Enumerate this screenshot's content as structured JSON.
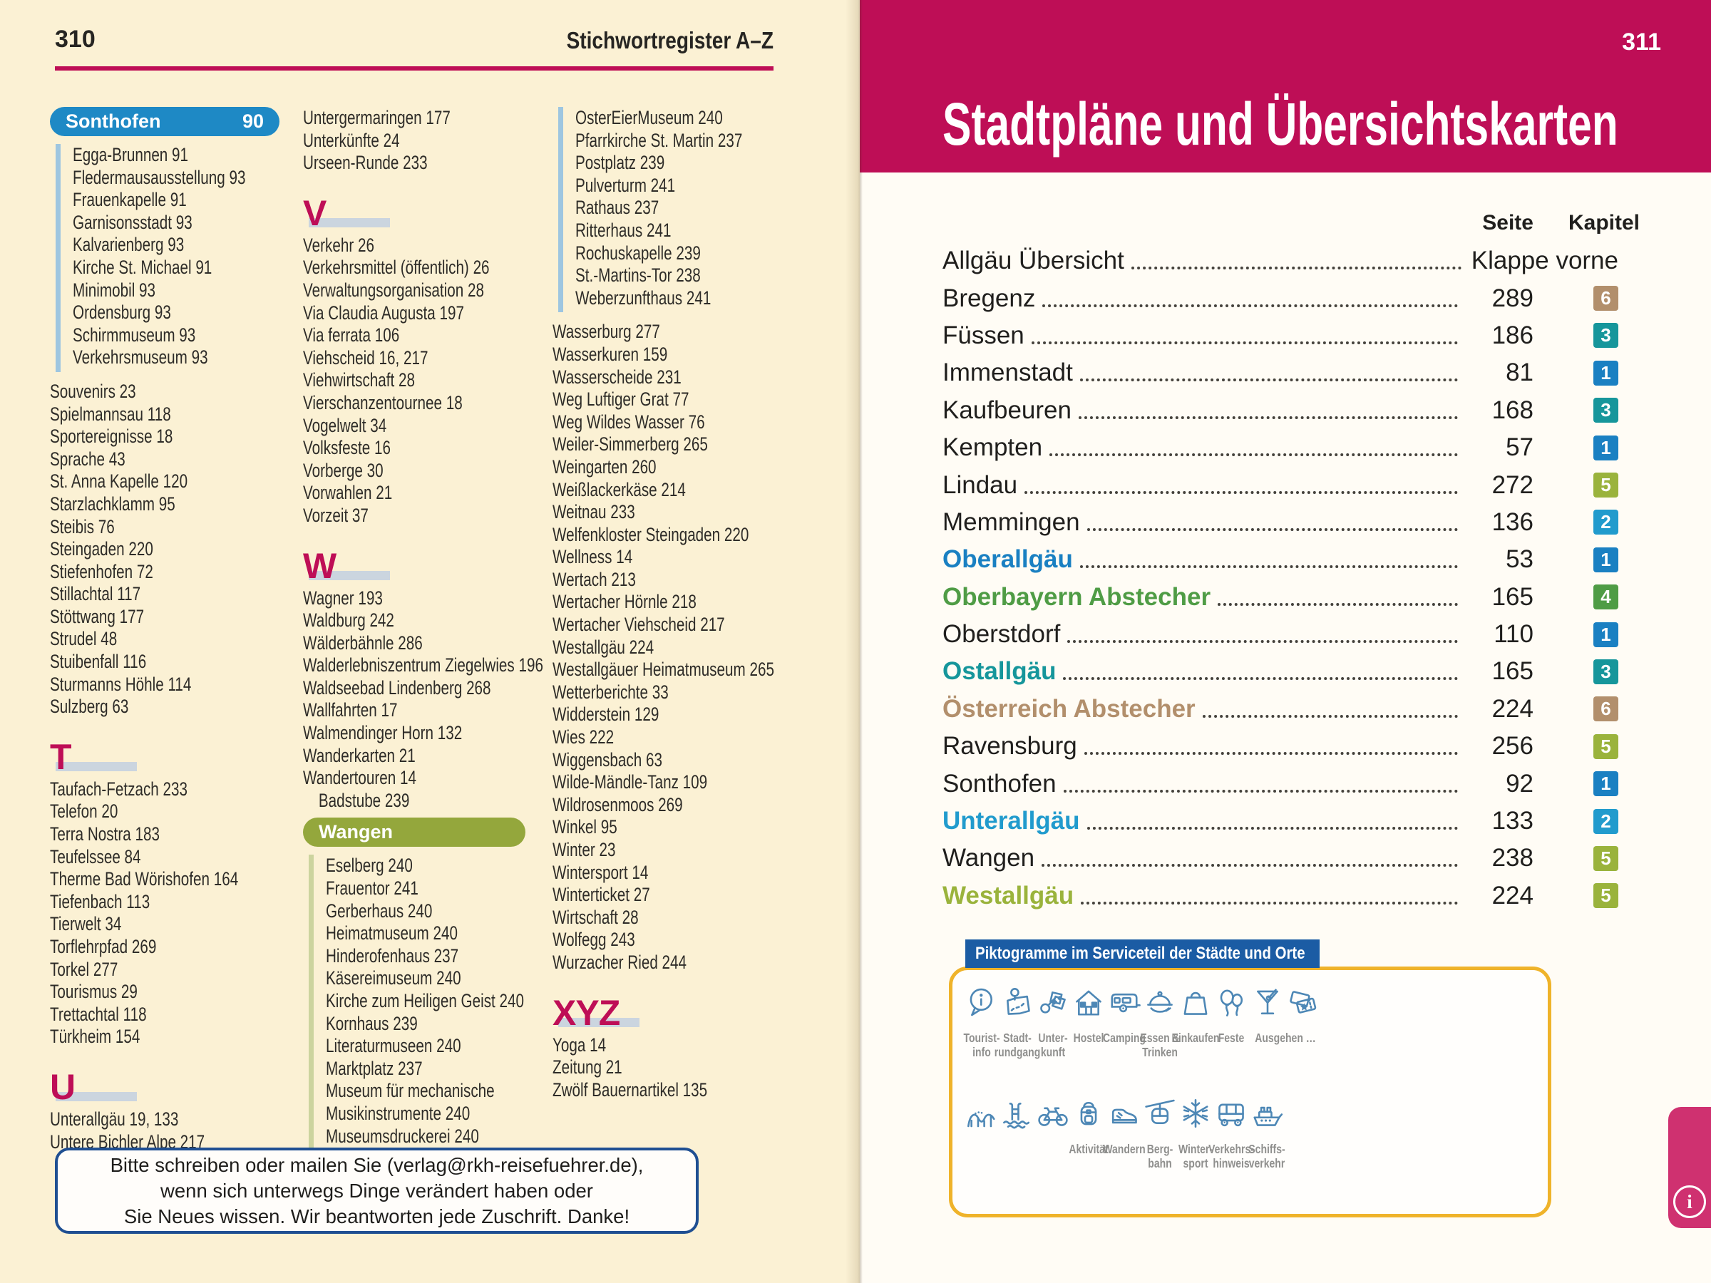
{
  "colors": {
    "crimson": "#be0e56",
    "cream": "#fbf1d4",
    "ink": "#2e2c28",
    "letter_bar": "#cbd5df",
    "blue_pill": "#1e89c5",
    "blue_bar": "#9ec6e0",
    "olive_pill": "#94a73c",
    "olive_bar": "#ccd49e",
    "note_border": "#1f4f92",
    "picto_header_bg": "#1b5ca4",
    "picto_border": "#efb32a",
    "icon_blue": "#4d87b5",
    "label_gray": "#8f8f8d",
    "pink_tab": "#cf3170",
    "chapter_colors": {
      "1": "#1a80c2",
      "2": "#219bcd",
      "3": "#16969b",
      "4": "#4f9c45",
      "5": "#9ab33c",
      "6": "#b28f6c"
    }
  },
  "left_page": {
    "page_number": "310",
    "header_title": "Stichwortregister A–Z",
    "columns": [
      {
        "blocks": [
          {
            "type": "pill",
            "color": "blue_pill",
            "label": "Sonthofen",
            "page": "90"
          },
          {
            "type": "group",
            "bar": "blue_bar",
            "entries": [
              {
                "label": "Egga-Brunnen",
                "page": "91"
              },
              {
                "label": "Fledermausausstellung",
                "page": "93"
              },
              {
                "label": "Frauenkapelle",
                "page": "91"
              },
              {
                "label": "Garnisonsstadt",
                "page": "93"
              },
              {
                "label": "Kalvarienberg",
                "page": "93"
              },
              {
                "label": "Kirche St. Michael",
                "page": "91"
              },
              {
                "label": "Minimobil",
                "page": "93"
              },
              {
                "label": "Ordensburg",
                "page": "93"
              },
              {
                "label": "Schirmmuseum",
                "page": "93"
              },
              {
                "label": "Verkehrsmuseum",
                "page": "93"
              }
            ]
          },
          {
            "type": "list",
            "entries": [
              {
                "label": "Souvenirs",
                "page": "23"
              },
              {
                "label": "Spielmannsau",
                "page": "118"
              },
              {
                "label": "Sportereignisse",
                "page": "18"
              },
              {
                "label": "Sprache",
                "page": "43"
              },
              {
                "label": "St. Anna Kapelle",
                "page": "120"
              },
              {
                "label": "Starzlachklamm",
                "page": "95"
              },
              {
                "label": "Steibis",
                "page": "76"
              },
              {
                "label": "Steingaden",
                "page": "220"
              },
              {
                "label": "Stiefenhofen",
                "page": "72"
              },
              {
                "label": "Stillachtal",
                "page": "117"
              },
              {
                "label": "Stöttwang",
                "page": "177"
              },
              {
                "label": "Strudel",
                "page": "48"
              },
              {
                "label": "Stuibenfall",
                "page": "116"
              },
              {
                "label": "Sturmanns Höhle",
                "page": "114"
              },
              {
                "label": "Sulzberg",
                "page": "63"
              }
            ]
          },
          {
            "type": "letter",
            "letter": "T"
          },
          {
            "type": "list",
            "entries": [
              {
                "label": "Taufach-Fetzach",
                "page": "233"
              },
              {
                "label": "Telefon",
                "page": "20"
              },
              {
                "label": "Terra Nostra",
                "page": "183"
              },
              {
                "label": "Teufelssee",
                "page": "84"
              },
              {
                "label": "Therme Bad Wörishofen",
                "page": "164"
              },
              {
                "label": "Tiefenbach",
                "page": "113"
              },
              {
                "label": "Tierwelt",
                "page": "34"
              },
              {
                "label": "Torflehrpfad",
                "page": "269"
              },
              {
                "label": "Torkel",
                "page": "277"
              },
              {
                "label": "Tourismus",
                "page": "29"
              },
              {
                "label": "Trettachtal",
                "page": "118"
              },
              {
                "label": "Türkheim",
                "page": "154"
              }
            ]
          },
          {
            "type": "letter",
            "letter": "U"
          },
          {
            "type": "list",
            "entries": [
              {
                "label": "Unterallgäu",
                "page": "19, 133"
              },
              {
                "label": "Untere Bichler Alpe",
                "page": "217"
              }
            ]
          }
        ]
      },
      {
        "blocks": [
          {
            "type": "list",
            "entries": [
              {
                "label": "Untergermaringen",
                "page": "177"
              },
              {
                "label": "Unterkünfte",
                "page": "24"
              },
              {
                "label": "Urseen-Runde",
                "page": "233"
              }
            ]
          },
          {
            "type": "letter",
            "letter": "V"
          },
          {
            "type": "list",
            "entries": [
              {
                "label": "Verkehr",
                "page": "26"
              },
              {
                "label": "Verkehrsmittel (öffentlich)",
                "page": "26"
              },
              {
                "label": "Verwaltungsorganisation",
                "page": "28"
              },
              {
                "label": "Via Claudia Augusta",
                "page": "197"
              },
              {
                "label": "Via ferrata",
                "page": "106"
              },
              {
                "label": "Viehscheid",
                "page": "16, 217"
              },
              {
                "label": "Viehwirtschaft",
                "page": "28"
              },
              {
                "label": "Vierschanzentournee",
                "page": "18"
              },
              {
                "label": "Vogelwelt",
                "page": "34"
              },
              {
                "label": "Volksfeste",
                "page": "16"
              },
              {
                "label": "Vorberge",
                "page": "30"
              },
              {
                "label": "Vorwahlen",
                "page": "21"
              },
              {
                "label": "Vorzeit",
                "page": "37"
              }
            ]
          },
          {
            "type": "letter",
            "letter": "W"
          },
          {
            "type": "list",
            "entries": [
              {
                "label": "Wagner",
                "page": "193"
              },
              {
                "label": "Waldburg",
                "page": "242"
              },
              {
                "label": "Wälderbähnle",
                "page": "286"
              },
              {
                "label": "Walderlebniszentrum Ziegelwies",
                "page": "196"
              },
              {
                "label": "Waldseebad Lindenberg",
                "page": "268"
              },
              {
                "label": "Wallfahrten",
                "page": "17"
              },
              {
                "label": "Walmendinger Horn",
                "page": "132"
              },
              {
                "label": "Wanderkarten",
                "page": "21"
              },
              {
                "label": "Wandertouren",
                "page": "14"
              },
              {
                "label": "Badstube",
                "page": "239",
                "indent": true
              }
            ]
          },
          {
            "type": "pill",
            "color": "olive_pill",
            "label": "Wangen",
            "page": ""
          },
          {
            "type": "group",
            "bar": "olive_bar",
            "entries": [
              {
                "label": "Eselberg",
                "page": "240"
              },
              {
                "label": "Frauentor",
                "page": "241"
              },
              {
                "label": "Gerberhaus",
                "page": "240"
              },
              {
                "label": "Heimatmuseum",
                "page": "240"
              },
              {
                "label": "Hinderofenhaus",
                "page": "237"
              },
              {
                "label": "Käsereimuseum",
                "page": "240"
              },
              {
                "label": "Kirche zum Heiligen Geist",
                "page": "240"
              },
              {
                "label": "Kornhaus",
                "page": "239"
              },
              {
                "label": "Literaturmuseen",
                "page": "240"
              },
              {
                "label": "Marktplatz",
                "page": "237"
              },
              {
                "label": "Museum für mechanische",
                "page": ""
              },
              {
                "label": "Musikinstrumente",
                "page": "240"
              },
              {
                "label": "Museumsdruckerei",
                "page": "240"
              }
            ]
          }
        ]
      },
      {
        "blocks": [
          {
            "type": "group",
            "bar": "blue_bar",
            "entries": [
              {
                "label": "OsterEierMuseum",
                "page": "240"
              },
              {
                "label": "Pfarrkirche St. Martin",
                "page": "237"
              },
              {
                "label": "Postplatz",
                "page": "239"
              },
              {
                "label": "Pulverturm",
                "page": "241"
              },
              {
                "label": "Rathaus",
                "page": "237"
              },
              {
                "label": "Ritterhaus",
                "page": "241"
              },
              {
                "label": "Rochuskapelle",
                "page": "239"
              },
              {
                "label": "St.-Martins-Tor",
                "page": "238"
              },
              {
                "label": "Weberzunfthaus",
                "page": "241"
              }
            ]
          },
          {
            "type": "list",
            "entries": [
              {
                "label": "Wasserburg",
                "page": "277"
              },
              {
                "label": "Wasserkuren",
                "page": "159"
              },
              {
                "label": "Wasserscheide",
                "page": "231"
              },
              {
                "label": "Weg Luftiger Grat",
                "page": "77"
              },
              {
                "label": "Weg Wildes Wasser",
                "page": "76"
              },
              {
                "label": "Weiler-Simmerberg",
                "page": "265"
              },
              {
                "label": "Weingarten",
                "page": "260"
              },
              {
                "label": "Weißlackerkäse",
                "page": "214"
              },
              {
                "label": "Weitnau",
                "page": "233"
              },
              {
                "label": "Welfenkloster Steingaden",
                "page": "220"
              },
              {
                "label": "Wellness",
                "page": "14"
              },
              {
                "label": "Wertach",
                "page": "213"
              },
              {
                "label": "Wertacher Hörnle",
                "page": "218"
              },
              {
                "label": "Wertacher Viehscheid",
                "page": "217"
              },
              {
                "label": "Westallgäu",
                "page": "224"
              },
              {
                "label": "Westallgäuer Heimatmuseum",
                "page": "265"
              },
              {
                "label": "Wetterberichte",
                "page": "33"
              },
              {
                "label": "Widderstein",
                "page": "129"
              },
              {
                "label": "Wies",
                "page": "222"
              },
              {
                "label": "Wiggensbach",
                "page": "63"
              },
              {
                "label": "Wilde-Mändle-Tanz",
                "page": "109"
              },
              {
                "label": "Wildrosenmoos",
                "page": "269"
              },
              {
                "label": "Winkel",
                "page": "95"
              },
              {
                "label": "Winter",
                "page": "23"
              },
              {
                "label": "Wintersport",
                "page": "14"
              },
              {
                "label": "Winterticket",
                "page": "27"
              },
              {
                "label": "Wirtschaft",
                "page": "28"
              },
              {
                "label": "Wolfegg",
                "page": "243"
              },
              {
                "label": "Wurzacher Ried",
                "page": "244"
              }
            ]
          },
          {
            "type": "letter",
            "letter": "XYZ"
          },
          {
            "type": "list",
            "entries": [
              {
                "label": "Yoga",
                "page": "14"
              },
              {
                "label": "Zeitung",
                "page": "21"
              },
              {
                "label": "Zwölf Bauernartikel",
                "page": "135"
              }
            ]
          }
        ]
      }
    ],
    "note_box": {
      "lines": [
        "Bitte schreiben oder mailen Sie (verlag@rkh-reisefuehrer.de),",
        "wenn sich unterwegs Dinge verändert haben oder",
        "Sie Neues wissen. Wir beantworten jede Zuschrift. Danke!"
      ]
    }
  },
  "right_page": {
    "page_number": "311",
    "title": "Stadtpläne und Übersichtskarten",
    "table": {
      "headers": [
        "Seite",
        "Kapitel"
      ],
      "rows": [
        {
          "name": "Allgäu Übersicht",
          "page": "Klappe vorne",
          "chapter": null
        },
        {
          "name": "Bregenz",
          "page": "289",
          "chapter": "6"
        },
        {
          "name": "Füssen",
          "page": "186",
          "chapter": "3"
        },
        {
          "name": "Immenstadt",
          "page": "81",
          "chapter": "1"
        },
        {
          "name": "Kaufbeuren",
          "page": "168",
          "chapter": "3"
        },
        {
          "name": "Kempten",
          "page": "57",
          "chapter": "1"
        },
        {
          "name": "Lindau",
          "page": "272",
          "chapter": "5"
        },
        {
          "name": "Memmingen",
          "page": "136",
          "chapter": "2"
        },
        {
          "name": "Oberallgäu",
          "page": "53",
          "chapter": "1",
          "name_color": "1"
        },
        {
          "name": "Oberbayern Abstecher",
          "page": "165",
          "chapter": "4",
          "name_color": "4"
        },
        {
          "name": "Oberstdorf",
          "page": "110",
          "chapter": "1"
        },
        {
          "name": "Ostallgäu",
          "page": "165",
          "chapter": "3",
          "name_color": "3"
        },
        {
          "name": "Österreich Abstecher",
          "page": "224",
          "chapter": "6",
          "name_color": "6"
        },
        {
          "name": "Ravensburg",
          "page": "256",
          "chapter": "5"
        },
        {
          "name": "Sonthofen",
          "page": "92",
          "chapter": "1"
        },
        {
          "name": "Unterallgäu",
          "page": "133",
          "chapter": "2",
          "name_color": "2"
        },
        {
          "name": "Wangen",
          "page": "238",
          "chapter": "5"
        },
        {
          "name": "Westallgäu",
          "page": "224",
          "chapter": "5",
          "name_color": "5"
        }
      ]
    },
    "pictograms": {
      "header": "Piktogramme im Serviceteil der Städte und Orte",
      "rows": [
        [
          {
            "icon": "tourist-info-icon",
            "label": "Tourist-\ninfo"
          },
          {
            "icon": "city-walk-icon",
            "label": "Stadt-\nrundgang"
          },
          {
            "icon": "accommodation-icon",
            "label": "Unter-\nkunft"
          },
          {
            "icon": "hostel-icon",
            "label": "Hostel"
          },
          {
            "icon": "camping-icon",
            "label": "Camping"
          },
          {
            "icon": "food-icon",
            "label": "Essen &\nTrinken"
          },
          {
            "icon": "shopping-icon",
            "label": "Einkaufen"
          },
          {
            "icon": "festival-icon",
            "label": "Feste"
          },
          {
            "icon": "nightlife-icon",
            "label": "Ausgehen …",
            "icons": [
              "cocktail-icon",
              "tickets-icon"
            ]
          }
        ],
        [
          {
            "icon": "rollercoaster-icon",
            "label": ""
          },
          {
            "icon": "swimming-icon",
            "label": ""
          },
          {
            "icon": "bicycle-icon",
            "label": ""
          },
          {
            "icon": "backpack-icon",
            "label": "Aktivität"
          },
          {
            "icon": "hiking-icon",
            "label": "Wandern"
          },
          {
            "icon": "cablecar-icon",
            "label": "Berg-\nbahn"
          },
          {
            "icon": "wintersport-icon",
            "label": "Winter-\nsport"
          },
          {
            "icon": "transport-icon",
            "label": "Verkehrs-\nhinweis"
          },
          {
            "icon": "ship-icon",
            "label": "Schiffs-\nverkehr"
          }
        ]
      ]
    },
    "info_tab_icon": "info-icon"
  }
}
